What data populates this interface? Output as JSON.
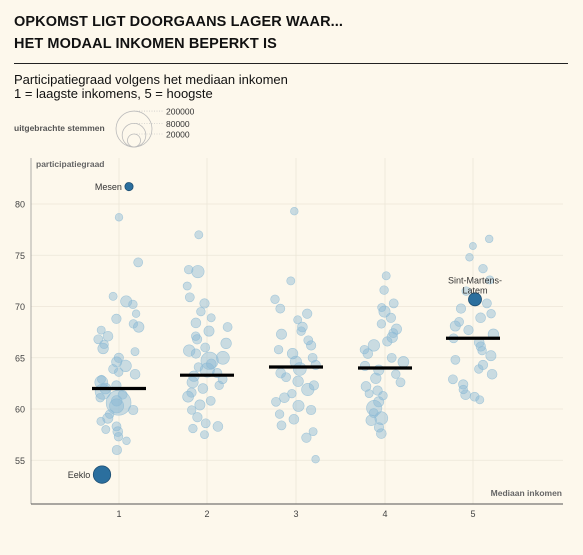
{
  "header": {
    "title": "OPKOMST LIGT DOORGAANS LAGER WAAR...",
    "subtitle": "HET MODAAL INKOMEN BEPERKT IS",
    "desc_line1": "Participatiegraad volgens het mediaan inkomen",
    "desc_line2": "1 = laagste inkomens, 5 = hoogste"
  },
  "size_legend": {
    "label": "uitgebrachte stemmen",
    "entries": [
      "200000",
      "80000",
      "20000"
    ]
  },
  "colors": {
    "background": "#fdf8ec",
    "bubble": "#8ab9d4",
    "highlight": "#2b6f9e",
    "median": "#000000"
  },
  "chart_data": {
    "type": "scatter",
    "ylabel": "participatiegraad",
    "xlabel": "Mediaan inkomen",
    "x_ticks": [
      "1",
      "2",
      "3",
      "4",
      "5"
    ],
    "y_ticks": [
      "55",
      "60",
      "65",
      "70",
      "75",
      "80"
    ],
    "ylim": [
      51,
      83
    ],
    "grid": true,
    "medians": [
      {
        "group": 1,
        "value": 62.0
      },
      {
        "group": 2,
        "value": 63.3
      },
      {
        "group": 3,
        "value": 64.1
      },
      {
        "group": 4,
        "value": 64.0
      },
      {
        "group": 5,
        "value": 66.9
      }
    ],
    "highlighted": [
      {
        "label": "Mesen",
        "group": 1,
        "value": 81.7,
        "votes": 6000
      },
      {
        "label": "Eeklo",
        "group": 1,
        "value": 53.6,
        "votes": 40000
      },
      {
        "label": "Sint-Martens-Latem",
        "group": 5,
        "value": 70.7,
        "votes": 20000
      }
    ],
    "points": [
      {
        "group": 1,
        "value": 78.7,
        "votes": 5000
      },
      {
        "group": 1,
        "value": 74.3,
        "votes": 8000
      },
      {
        "group": 1,
        "value": 71.0,
        "votes": 6000
      },
      {
        "group": 1,
        "value": 70.2,
        "votes": 7000
      },
      {
        "group": 1,
        "value": 70.5,
        "votes": 14000
      },
      {
        "group": 1,
        "value": 69.3,
        "votes": 5000
      },
      {
        "group": 1,
        "value": 68.8,
        "votes": 9000
      },
      {
        "group": 1,
        "value": 68.3,
        "votes": 7000
      },
      {
        "group": 1,
        "value": 68.0,
        "votes": 12000
      },
      {
        "group": 1,
        "value": 67.7,
        "votes": 6000
      },
      {
        "group": 1,
        "value": 67.1,
        "votes": 10000
      },
      {
        "group": 1,
        "value": 66.8,
        "votes": 8000
      },
      {
        "group": 1,
        "value": 66.3,
        "votes": 7000
      },
      {
        "group": 1,
        "value": 65.9,
        "votes": 12000
      },
      {
        "group": 1,
        "value": 65.6,
        "votes": 6000
      },
      {
        "group": 1,
        "value": 65.0,
        "votes": 9000
      },
      {
        "group": 1,
        "value": 64.6,
        "votes": 11000
      },
      {
        "group": 1,
        "value": 64.2,
        "votes": 15000
      },
      {
        "group": 1,
        "value": 63.9,
        "votes": 8000
      },
      {
        "group": 1,
        "value": 63.6,
        "votes": 7000
      },
      {
        "group": 1,
        "value": 63.4,
        "votes": 10000
      },
      {
        "group": 1,
        "value": 62.9,
        "votes": 6000
      },
      {
        "group": 1,
        "value": 62.6,
        "votes": 20000
      },
      {
        "group": 1,
        "value": 62.3,
        "votes": 9000
      },
      {
        "group": 1,
        "value": 62.0,
        "votes": 13000
      },
      {
        "group": 1,
        "value": 61.7,
        "votes": 30000
      },
      {
        "group": 1,
        "value": 61.4,
        "votes": 8000
      },
      {
        "group": 1,
        "value": 61.1,
        "votes": 7000
      },
      {
        "group": 1,
        "value": 60.8,
        "votes": 12000
      },
      {
        "group": 1,
        "value": 60.6,
        "votes": 90000
      },
      {
        "group": 1,
        "value": 60.3,
        "votes": 25000
      },
      {
        "group": 1,
        "value": 59.9,
        "votes": 9000
      },
      {
        "group": 1,
        "value": 59.5,
        "votes": 7000
      },
      {
        "group": 1,
        "value": 59.1,
        "votes": 11000
      },
      {
        "group": 1,
        "value": 58.8,
        "votes": 6000
      },
      {
        "group": 1,
        "value": 58.3,
        "votes": 8000
      },
      {
        "group": 1,
        "value": 57.8,
        "votes": 10000
      },
      {
        "group": 1,
        "value": 57.3,
        "votes": 7000
      },
      {
        "group": 1,
        "value": 56.9,
        "votes": 5000
      },
      {
        "group": 1,
        "value": 56.0,
        "votes": 9000
      },
      {
        "group": 1,
        "value": 58.0,
        "votes": 6000
      },
      {
        "group": 2,
        "value": 77.0,
        "votes": 6000
      },
      {
        "group": 2,
        "value": 73.6,
        "votes": 7000
      },
      {
        "group": 2,
        "value": 73.4,
        "votes": 18000
      },
      {
        "group": 2,
        "value": 72.0,
        "votes": 6000
      },
      {
        "group": 2,
        "value": 70.9,
        "votes": 8000
      },
      {
        "group": 2,
        "value": 70.3,
        "votes": 9000
      },
      {
        "group": 2,
        "value": 69.5,
        "votes": 7000
      },
      {
        "group": 2,
        "value": 68.9,
        "votes": 6000
      },
      {
        "group": 2,
        "value": 68.4,
        "votes": 10000
      },
      {
        "group": 2,
        "value": 68.0,
        "votes": 8000
      },
      {
        "group": 2,
        "value": 67.6,
        "votes": 11000
      },
      {
        "group": 2,
        "value": 67.1,
        "votes": 7000
      },
      {
        "group": 2,
        "value": 66.8,
        "votes": 9000
      },
      {
        "group": 2,
        "value": 66.4,
        "votes": 12000
      },
      {
        "group": 2,
        "value": 66.0,
        "votes": 8000
      },
      {
        "group": 2,
        "value": 65.7,
        "votes": 15000
      },
      {
        "group": 2,
        "value": 65.4,
        "votes": 9000
      },
      {
        "group": 2,
        "value": 65.0,
        "votes": 20000
      },
      {
        "group": 2,
        "value": 64.7,
        "votes": 40000
      },
      {
        "group": 2,
        "value": 64.4,
        "votes": 10000
      },
      {
        "group": 2,
        "value": 64.1,
        "votes": 7000
      },
      {
        "group": 2,
        "value": 63.8,
        "votes": 25000
      },
      {
        "group": 2,
        "value": 63.5,
        "votes": 9000
      },
      {
        "group": 2,
        "value": 63.2,
        "votes": 12000
      },
      {
        "group": 2,
        "value": 62.9,
        "votes": 8000
      },
      {
        "group": 2,
        "value": 62.6,
        "votes": 14000
      },
      {
        "group": 2,
        "value": 62.3,
        "votes": 7000
      },
      {
        "group": 2,
        "value": 62.0,
        "votes": 10000
      },
      {
        "group": 2,
        "value": 61.6,
        "votes": 9000
      },
      {
        "group": 2,
        "value": 61.2,
        "votes": 13000
      },
      {
        "group": 2,
        "value": 60.8,
        "votes": 8000
      },
      {
        "group": 2,
        "value": 60.4,
        "votes": 11000
      },
      {
        "group": 2,
        "value": 59.9,
        "votes": 7000
      },
      {
        "group": 2,
        "value": 59.2,
        "votes": 9000
      },
      {
        "group": 2,
        "value": 58.6,
        "votes": 8000
      },
      {
        "group": 2,
        "value": 58.1,
        "votes": 7000
      },
      {
        "group": 2,
        "value": 57.5,
        "votes": 6000
      },
      {
        "group": 2,
        "value": 58.3,
        "votes": 10000
      },
      {
        "group": 3,
        "value": 79.3,
        "votes": 5000
      },
      {
        "group": 3,
        "value": 72.5,
        "votes": 6000
      },
      {
        "group": 3,
        "value": 70.7,
        "votes": 7000
      },
      {
        "group": 3,
        "value": 69.8,
        "votes": 8000
      },
      {
        "group": 3,
        "value": 69.3,
        "votes": 9000
      },
      {
        "group": 3,
        "value": 68.7,
        "votes": 6000
      },
      {
        "group": 3,
        "value": 68.0,
        "votes": 10000
      },
      {
        "group": 3,
        "value": 67.6,
        "votes": 7000
      },
      {
        "group": 3,
        "value": 67.3,
        "votes": 11000
      },
      {
        "group": 3,
        "value": 66.7,
        "votes": 8000
      },
      {
        "group": 3,
        "value": 66.2,
        "votes": 9000
      },
      {
        "group": 3,
        "value": 65.8,
        "votes": 7000
      },
      {
        "group": 3,
        "value": 65.4,
        "votes": 12000
      },
      {
        "group": 3,
        "value": 65.0,
        "votes": 8000
      },
      {
        "group": 3,
        "value": 64.6,
        "votes": 15000
      },
      {
        "group": 3,
        "value": 64.3,
        "votes": 9000
      },
      {
        "group": 3,
        "value": 63.9,
        "votes": 20000
      },
      {
        "group": 3,
        "value": 63.5,
        "votes": 10000
      },
      {
        "group": 3,
        "value": 63.1,
        "votes": 8000
      },
      {
        "group": 3,
        "value": 62.7,
        "votes": 12000
      },
      {
        "group": 3,
        "value": 62.3,
        "votes": 9000
      },
      {
        "group": 3,
        "value": 61.9,
        "votes": 18000
      },
      {
        "group": 3,
        "value": 61.5,
        "votes": 7000
      },
      {
        "group": 3,
        "value": 61.1,
        "votes": 10000
      },
      {
        "group": 3,
        "value": 60.7,
        "votes": 8000
      },
      {
        "group": 3,
        "value": 60.3,
        "votes": 14000
      },
      {
        "group": 3,
        "value": 59.9,
        "votes": 9000
      },
      {
        "group": 3,
        "value": 59.5,
        "votes": 7000
      },
      {
        "group": 3,
        "value": 59.0,
        "votes": 10000
      },
      {
        "group": 3,
        "value": 58.4,
        "votes": 8000
      },
      {
        "group": 3,
        "value": 57.8,
        "votes": 6000
      },
      {
        "group": 3,
        "value": 57.2,
        "votes": 9000
      },
      {
        "group": 3,
        "value": 55.1,
        "votes": 5000
      },
      {
        "group": 4,
        "value": 73.0,
        "votes": 6000
      },
      {
        "group": 4,
        "value": 71.6,
        "votes": 7000
      },
      {
        "group": 4,
        "value": 70.3,
        "votes": 8000
      },
      {
        "group": 4,
        "value": 69.9,
        "votes": 6000
      },
      {
        "group": 4,
        "value": 69.5,
        "votes": 14000
      },
      {
        "group": 4,
        "value": 68.9,
        "votes": 9000
      },
      {
        "group": 4,
        "value": 68.3,
        "votes": 7000
      },
      {
        "group": 4,
        "value": 67.8,
        "votes": 11000
      },
      {
        "group": 4,
        "value": 67.4,
        "votes": 8000
      },
      {
        "group": 4,
        "value": 67.0,
        "votes": 12000
      },
      {
        "group": 4,
        "value": 66.6,
        "votes": 9000
      },
      {
        "group": 4,
        "value": 66.2,
        "votes": 15000
      },
      {
        "group": 4,
        "value": 65.8,
        "votes": 7000
      },
      {
        "group": 4,
        "value": 65.4,
        "votes": 10000
      },
      {
        "group": 4,
        "value": 65.0,
        "votes": 8000
      },
      {
        "group": 4,
        "value": 64.6,
        "votes": 13000
      },
      {
        "group": 4,
        "value": 64.2,
        "votes": 9000
      },
      {
        "group": 4,
        "value": 63.8,
        "votes": 11000
      },
      {
        "group": 4,
        "value": 63.4,
        "votes": 7000
      },
      {
        "group": 4,
        "value": 63.0,
        "votes": 12000
      },
      {
        "group": 4,
        "value": 62.6,
        "votes": 8000
      },
      {
        "group": 4,
        "value": 62.2,
        "votes": 10000
      },
      {
        "group": 4,
        "value": 61.8,
        "votes": 9000
      },
      {
        "group": 4,
        "value": 61.3,
        "votes": 7000
      },
      {
        "group": 4,
        "value": 60.7,
        "votes": 11000
      },
      {
        "group": 4,
        "value": 60.1,
        "votes": 30000
      },
      {
        "group": 4,
        "value": 59.6,
        "votes": 8000
      },
      {
        "group": 4,
        "value": 59.1,
        "votes": 20000
      },
      {
        "group": 4,
        "value": 58.9,
        "votes": 12000
      },
      {
        "group": 4,
        "value": 58.2,
        "votes": 9000
      },
      {
        "group": 4,
        "value": 57.6,
        "votes": 10000
      },
      {
        "group": 4,
        "value": 61.5,
        "votes": 6000
      },
      {
        "group": 5,
        "value": 76.6,
        "votes": 5000
      },
      {
        "group": 5,
        "value": 75.9,
        "votes": 4000
      },
      {
        "group": 5,
        "value": 74.8,
        "votes": 5000
      },
      {
        "group": 5,
        "value": 73.7,
        "votes": 7000
      },
      {
        "group": 5,
        "value": 72.6,
        "votes": 6000
      },
      {
        "group": 5,
        "value": 71.5,
        "votes": 7000
      },
      {
        "group": 5,
        "value": 70.3,
        "votes": 8000
      },
      {
        "group": 5,
        "value": 69.8,
        "votes": 9000
      },
      {
        "group": 5,
        "value": 69.3,
        "votes": 7000
      },
      {
        "group": 5,
        "value": 68.9,
        "votes": 10000
      },
      {
        "group": 5,
        "value": 68.5,
        "votes": 8000
      },
      {
        "group": 5,
        "value": 68.1,
        "votes": 11000
      },
      {
        "group": 5,
        "value": 67.7,
        "votes": 9000
      },
      {
        "group": 5,
        "value": 67.3,
        "votes": 12000
      },
      {
        "group": 5,
        "value": 66.9,
        "votes": 8000
      },
      {
        "group": 5,
        "value": 66.5,
        "votes": 10000
      },
      {
        "group": 5,
        "value": 66.1,
        "votes": 9000
      },
      {
        "group": 5,
        "value": 65.7,
        "votes": 7000
      },
      {
        "group": 5,
        "value": 65.2,
        "votes": 11000
      },
      {
        "group": 5,
        "value": 64.8,
        "votes": 8000
      },
      {
        "group": 5,
        "value": 64.3,
        "votes": 9000
      },
      {
        "group": 5,
        "value": 63.9,
        "votes": 7000
      },
      {
        "group": 5,
        "value": 63.4,
        "votes": 10000
      },
      {
        "group": 5,
        "value": 62.9,
        "votes": 8000
      },
      {
        "group": 5,
        "value": 62.4,
        "votes": 9000
      },
      {
        "group": 5,
        "value": 61.9,
        "votes": 7000
      },
      {
        "group": 5,
        "value": 61.4,
        "votes": 10000
      },
      {
        "group": 5,
        "value": 61.2,
        "votes": 8000
      },
      {
        "group": 5,
        "value": 60.9,
        "votes": 6000
      }
    ]
  }
}
